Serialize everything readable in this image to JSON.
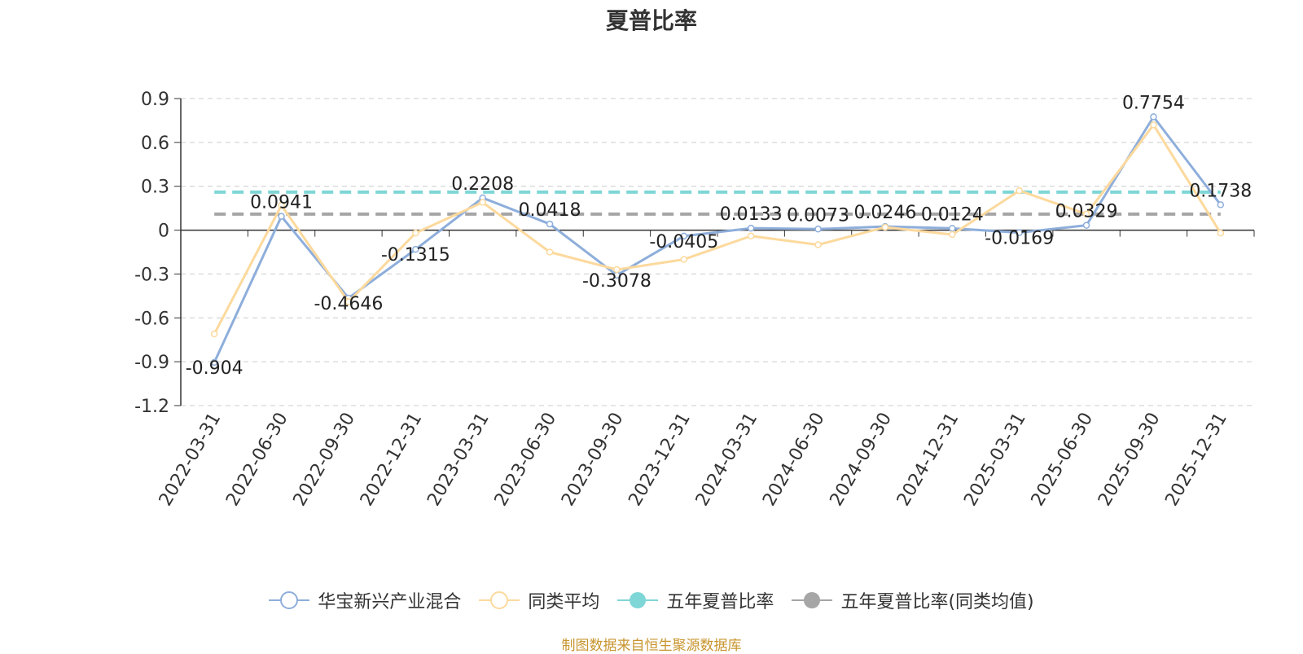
{
  "chart_data": {
    "type": "line",
    "title": "夏普比率",
    "source": "制图数据来自恒生聚源数据库",
    "categories": [
      "2022-03-31",
      "2022-06-30",
      "2022-09-30",
      "2022-12-31",
      "2023-03-31",
      "2023-06-30",
      "2023-09-30",
      "2023-12-31",
      "2024-03-31",
      "2024-06-30",
      "2024-09-30",
      "2024-12-31",
      "2025-03-31",
      "2025-06-30",
      "2025-09-30",
      "2025-12-31"
    ],
    "ylim": [
      -1.2,
      0.9
    ],
    "yticks": [
      "0.9",
      "0.6",
      "0.3",
      "0",
      "-0.3",
      "-0.6",
      "-0.9",
      "-1.2"
    ],
    "grid": true,
    "legend_position": "bottom",
    "series": [
      {
        "name": "华宝新兴产业混合",
        "color": "#8eaedb",
        "values": [
          -0.904,
          0.0941,
          -0.4646,
          -0.1315,
          0.2208,
          0.0418,
          -0.3078,
          -0.0405,
          0.0133,
          0.0073,
          0.0246,
          0.0124,
          -0.0169,
          0.0329,
          0.7754,
          0.1738
        ],
        "labels": [
          "-0.904",
          "0.0941",
          "-0.4646",
          "-0.1315",
          "0.2208",
          "0.0418",
          "-0.3078",
          "-0.0405",
          "0.0133",
          "0.0073",
          "0.0246",
          "0.0124",
          "-0.0169",
          "0.0329",
          "0.7754",
          "0.1738"
        ]
      },
      {
        "name": "同类平均",
        "color": "#fcd99d",
        "values": [
          -0.71,
          0.17,
          -0.49,
          -0.02,
          0.19,
          -0.15,
          -0.27,
          -0.2,
          -0.04,
          -0.1,
          0.02,
          -0.03,
          0.27,
          0.11,
          0.72,
          -0.02
        ]
      }
    ],
    "reference_lines": [
      {
        "name": "五年夏普比率",
        "value": 0.26,
        "color": "#7fd6d6",
        "style": "dashed"
      },
      {
        "name": "五年夏普比率(同类均值)",
        "value": 0.11,
        "color": "#a6a6a6",
        "style": "dashed"
      }
    ]
  }
}
